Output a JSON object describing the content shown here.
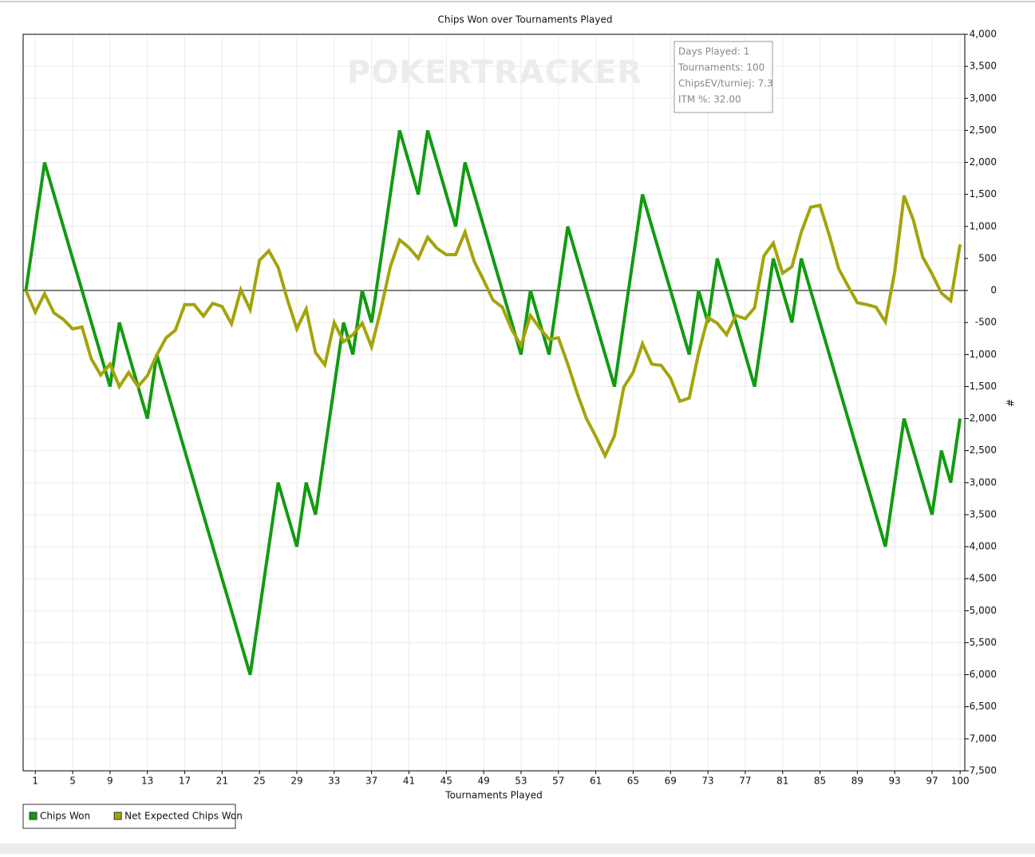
{
  "chart_data": {
    "type": "line",
    "title": "Chips Won over Tournaments Played",
    "xlabel": "Tournaments Played",
    "ylabel": "#",
    "watermark": "POKERTRACKER",
    "annotations": [
      "Days Played: 1",
      "Tournaments: 100",
      "ChipsEV/turniej: 7.3",
      "ITM %: 32.00"
    ],
    "x": [
      0,
      1,
      2,
      3,
      4,
      5,
      6,
      7,
      8,
      9,
      10,
      11,
      12,
      13,
      14,
      15,
      16,
      17,
      18,
      19,
      20,
      21,
      22,
      23,
      24,
      25,
      26,
      27,
      28,
      29,
      30,
      31,
      32,
      33,
      34,
      35,
      36,
      37,
      38,
      39,
      40,
      41,
      42,
      43,
      44,
      45,
      46,
      47,
      48,
      49,
      50,
      51,
      52,
      53,
      54,
      55,
      56,
      57,
      58,
      59,
      60,
      61,
      62,
      63,
      64,
      65,
      66,
      67,
      68,
      69,
      70,
      71,
      72,
      73,
      74,
      75,
      76,
      77,
      78,
      79,
      80,
      81,
      82,
      83,
      84,
      85,
      86,
      87,
      88,
      89,
      90,
      91,
      92,
      93,
      94,
      95,
      96,
      97,
      98,
      99,
      100
    ],
    "series": [
      {
        "name": "Chips Won",
        "color": "#119b11",
        "values": [
          0,
          1000,
          2000,
          1500,
          1000,
          500,
          0,
          -500,
          -1000,
          -1500,
          -500,
          -1000,
          -1500,
          -2000,
          -1000,
          -1500,
          -2000,
          -2500,
          -3000,
          -3500,
          -4000,
          -4500,
          -5000,
          -5500,
          -6000,
          -5000,
          -4000,
          -3000,
          -3500,
          -4000,
          -3000,
          -3500,
          -2500,
          -1500,
          -500,
          -1000,
          0,
          -500,
          500,
          1500,
          2500,
          2000,
          1500,
          2500,
          2000,
          1500,
          1000,
          2000,
          1500,
          1000,
          500,
          0,
          -500,
          -1000,
          0,
          -500,
          -1000,
          0,
          1000,
          500,
          0,
          -500,
          -1000,
          -1500,
          -500,
          500,
          1500,
          1000,
          500,
          0,
          -500,
          -1000,
          0,
          -500,
          500,
          0,
          -500,
          -1000,
          -1500,
          -500,
          500,
          0,
          -500,
          500,
          0,
          -500,
          -1000,
          -1500,
          -2000,
          -2500,
          -3000,
          -3500,
          -4000,
          -3000,
          -2000,
          -2500,
          -3000,
          -3500,
          -2500,
          -3000,
          -2000
        ]
      },
      {
        "name": "Net Expected Chips Won",
        "color": "#a4a40c",
        "values": [
          0,
          -340,
          -50,
          -350,
          -450,
          -600,
          -570,
          -1070,
          -1320,
          -1150,
          -1500,
          -1280,
          -1500,
          -1330,
          -1010,
          -740,
          -620,
          -220,
          -220,
          -400,
          -200,
          -250,
          -520,
          10,
          -300,
          470,
          620,
          360,
          -150,
          -600,
          -290,
          -970,
          -1160,
          -500,
          -800,
          -690,
          -510,
          -880,
          -290,
          370,
          790,
          670,
          500,
          830,
          660,
          560,
          560,
          910,
          450,
          160,
          -150,
          -260,
          -610,
          -860,
          -390,
          -590,
          -760,
          -740,
          -1150,
          -1600,
          -2000,
          -2280,
          -2580,
          -2270,
          -1510,
          -1280,
          -830,
          -1150,
          -1170,
          -1370,
          -1730,
          -1680,
          -980,
          -420,
          -510,
          -690,
          -390,
          -440,
          -270,
          540,
          740,
          270,
          370,
          910,
          1300,
          1330,
          860,
          340,
          70,
          -190,
          -220,
          -260,
          -490,
          290,
          1480,
          1100,
          520,
          260,
          -40,
          -160,
          720
        ]
      }
    ],
    "xlim": [
      -0.3,
      100.5
    ],
    "xticks": [
      1,
      5,
      9,
      13,
      17,
      21,
      25,
      29,
      33,
      37,
      41,
      45,
      49,
      53,
      57,
      61,
      65,
      69,
      73,
      77,
      81,
      85,
      89,
      93,
      97,
      100
    ],
    "ylim": [
      -7500,
      4000
    ],
    "yticks": [
      {
        "value": 4000,
        "label": "4,000"
      },
      {
        "value": 3500,
        "label": "3,500"
      },
      {
        "value": 3000,
        "label": "3,000"
      },
      {
        "value": 2500,
        "label": "2,500"
      },
      {
        "value": 2000,
        "label": "2,000"
      },
      {
        "value": 1500,
        "label": "1,500"
      },
      {
        "value": 1000,
        "label": "1,000"
      },
      500,
      0,
      -500,
      {
        "value": -1000,
        "label": "-1,000"
      },
      {
        "value": -1500,
        "label": "-1,500"
      },
      {
        "value": -2000,
        "label": "-2,000"
      },
      {
        "value": -2500,
        "label": "-2,500"
      },
      {
        "value": -3000,
        "label": "-3,000"
      },
      {
        "value": -3500,
        "label": "-3,500"
      },
      {
        "value": -4000,
        "label": "-4,000"
      },
      {
        "value": -4500,
        "label": "-4,500"
      },
      {
        "value": -5000,
        "label": "-5,000"
      },
      {
        "value": -5500,
        "label": "-5,500"
      },
      {
        "value": -6000,
        "label": "-6,000"
      },
      {
        "value": -6500,
        "label": "-6,500"
      },
      {
        "value": -7000,
        "label": "-7,000"
      },
      {
        "value": -7500,
        "label": "-7,500"
      }
    ],
    "grid": true,
    "legend": "bottom-left"
  }
}
